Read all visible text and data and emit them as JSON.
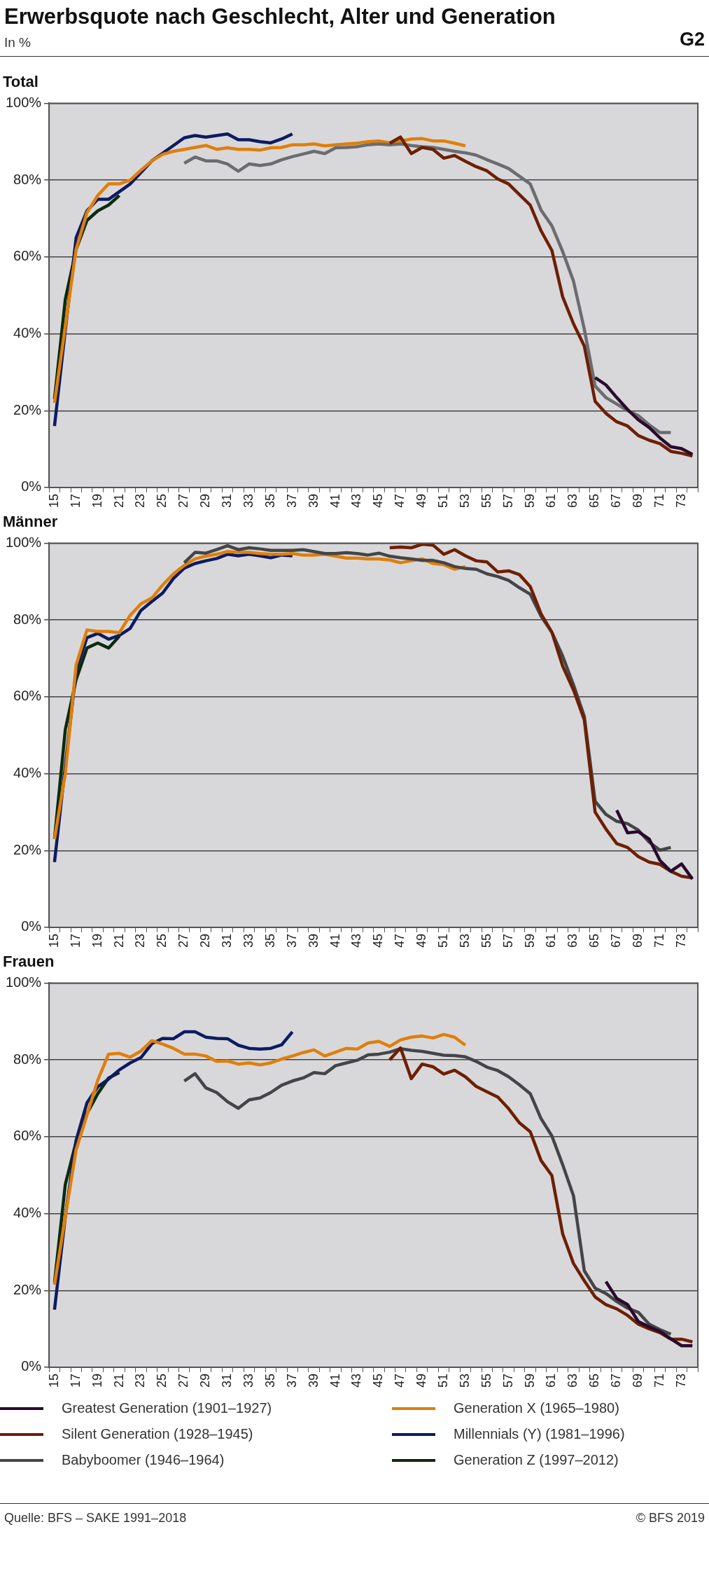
{
  "chart_data": [
    {
      "type": "other",
      "title": "Erwerbsquote nach Geschlecht, Alter und Generation",
      "subtitle": "In %",
      "annotations": [
        "G2"
      ]
    },
    {
      "type": "line",
      "title": "Total",
      "categories": [
        "15",
        null,
        "17",
        null,
        "19",
        null,
        "21",
        null,
        "23",
        null,
        "25",
        null,
        "27",
        null,
        "29",
        null,
        "31",
        null,
        "33",
        null,
        "35",
        null,
        "37",
        null,
        "39",
        null,
        "41",
        null,
        "43",
        null,
        "45",
        null,
        "47",
        null,
        "49",
        null,
        "51",
        null,
        "53",
        null,
        "55",
        null,
        "57",
        null,
        "59",
        null,
        "61",
        null,
        "63",
        null,
        "65",
        null,
        "67",
        null,
        "69",
        null,
        "71",
        null,
        "73",
        null
      ],
      "ylim": [
        0,
        100
      ],
      "yticks": [
        {
          "value": 0,
          "label": "0%"
        },
        {
          "value": 20,
          "label": "20%"
        },
        {
          "value": 40,
          "label": "40%"
        },
        {
          "value": 60,
          "label": "60%"
        },
        {
          "value": 80,
          "label": "80%"
        },
        {
          "value": 100,
          "label": "100%"
        }
      ],
      "grid": "y",
      "series": [
        {
          "color": "#2a0a2c",
          "values": [
            null,
            null,
            null,
            null,
            null,
            null,
            null,
            null,
            null,
            null,
            null,
            null,
            null,
            null,
            null,
            null,
            null,
            null,
            null,
            null,
            null,
            null,
            null,
            null,
            null,
            null,
            null,
            null,
            null,
            null,
            null,
            null,
            null,
            null,
            null,
            null,
            null,
            null,
            null,
            null,
            null,
            null,
            null,
            null,
            null,
            null,
            null,
            null,
            null,
            null,
            28.6,
            26.7,
            23.4,
            20.3,
            17.6,
            15.6,
            12.9,
            10.6,
            10.1,
            8.6
          ]
        },
        {
          "color": "#6e1f00",
          "values": [
            null,
            null,
            null,
            null,
            null,
            null,
            null,
            null,
            null,
            null,
            null,
            null,
            null,
            null,
            null,
            null,
            null,
            null,
            null,
            null,
            null,
            null,
            null,
            null,
            null,
            null,
            null,
            null,
            null,
            null,
            null,
            89.6,
            91.2,
            86.9,
            88.5,
            88,
            85.7,
            86.4,
            84.9,
            83.5,
            82.4,
            80.3,
            79,
            76.2,
            73.5,
            66.8,
            61.7,
            49.6,
            42.6,
            36.8,
            22.4,
            19.3,
            17.1,
            16,
            13.5,
            12.3,
            11.4,
            9.4,
            8.9,
            8.2
          ]
        },
        {
          "color": "#6b6c6f",
          "values": [
            null,
            null,
            null,
            null,
            null,
            null,
            null,
            null,
            null,
            null,
            null,
            null,
            84.4,
            86,
            85,
            85,
            84.2,
            82.3,
            84.2,
            83.8,
            84.2,
            85.3,
            86.1,
            86.8,
            87.5,
            86.9,
            88.4,
            88.5,
            88.7,
            89.2,
            89.4,
            89.2,
            89.4,
            89,
            88.7,
            88.5,
            88,
            87.5,
            87.1,
            86.5,
            85.3,
            84.2,
            83,
            81,
            79,
            72.2,
            68.1,
            61.4,
            53.7,
            41.2,
            26.4,
            23.4,
            21.7,
            20,
            18.7,
            16.3,
            14.3,
            14.3,
            null,
            null
          ]
        },
        {
          "color": "#e07f0a",
          "values": [
            22,
            42,
            62,
            71.5,
            76,
            79,
            79,
            80,
            82.6,
            85,
            86.7,
            87.5,
            88,
            88.5,
            89,
            88,
            88.4,
            88,
            88,
            87.8,
            88.4,
            88.5,
            89.2,
            89.2,
            89.4,
            88.9,
            89.2,
            89.4,
            89.6,
            90,
            90.2,
            89.7,
            90.2,
            90.7,
            90.8,
            90.2,
            90.2,
            89.6,
            88.9,
            null,
            null,
            null,
            null,
            null,
            null,
            null,
            null,
            null,
            null,
            null,
            null,
            null,
            null,
            null,
            null,
            null,
            null,
            null,
            null,
            null
          ]
        },
        {
          "color": "#0d1b63",
          "values": [
            16,
            41,
            65,
            72,
            75,
            75,
            77,
            79,
            82,
            85,
            87,
            89,
            91,
            91.6,
            91.2,
            91.6,
            92,
            90.5,
            90.5,
            90,
            89.7,
            90.7,
            92,
            null,
            null,
            null,
            null,
            null,
            null,
            null,
            null,
            null,
            null,
            null,
            null,
            null,
            null,
            null,
            null,
            null,
            null,
            null,
            null,
            null,
            null,
            null,
            null,
            null,
            null,
            null,
            null,
            null,
            null,
            null,
            null,
            null,
            null,
            null,
            null,
            null
          ]
        },
        {
          "color": "#0b2b10",
          "values": [
            23,
            49,
            62,
            69.5,
            72,
            73.5,
            76,
            null,
            null,
            null,
            null,
            null,
            null,
            null,
            null,
            null,
            null,
            null,
            null,
            null,
            null,
            null,
            null,
            null,
            null,
            null,
            null,
            null,
            null,
            null,
            null,
            null,
            null,
            null,
            null,
            null,
            null,
            null,
            null,
            null,
            null,
            null,
            null,
            null,
            null,
            null,
            null,
            null,
            null,
            null,
            null,
            null,
            null,
            null,
            null,
            null,
            null,
            null,
            null,
            null
          ]
        }
      ]
    },
    {
      "type": "line",
      "title": "Männer",
      "categories": [
        "15",
        null,
        "17",
        null,
        "19",
        null,
        "21",
        null,
        "23",
        null,
        "25",
        null,
        "27",
        null,
        "29",
        null,
        "31",
        null,
        "33",
        null,
        "35",
        null,
        "37",
        null,
        "39",
        null,
        "41",
        null,
        "43",
        null,
        "45",
        null,
        "47",
        null,
        "49",
        null,
        "51",
        null,
        "53",
        null,
        "55",
        null,
        "57",
        null,
        "59",
        null,
        "61",
        null,
        "63",
        null,
        "65",
        null,
        "67",
        null,
        "69",
        null,
        "71",
        null,
        "73",
        null
      ],
      "ylim": [
        0,
        100
      ],
      "yticks": [
        {
          "value": 0,
          "label": "0%"
        },
        {
          "value": 20,
          "label": "20%"
        },
        {
          "value": 40,
          "label": "40%"
        },
        {
          "value": 60,
          "label": "60%"
        },
        {
          "value": 80,
          "label": "80%"
        },
        {
          "value": 100,
          "label": "100%"
        }
      ],
      "grid": "y",
      "series": [
        {
          "color": "#2a0a2c",
          "values": [
            null,
            null,
            null,
            null,
            null,
            null,
            null,
            null,
            null,
            null,
            null,
            null,
            null,
            null,
            null,
            null,
            null,
            null,
            null,
            null,
            null,
            null,
            null,
            null,
            null,
            null,
            null,
            null,
            null,
            null,
            null,
            null,
            null,
            null,
            null,
            null,
            null,
            null,
            null,
            null,
            null,
            null,
            null,
            null,
            null,
            null,
            null,
            null,
            null,
            null,
            null,
            null,
            30.5,
            24.6,
            24.9,
            23,
            17.4,
            14.6,
            16.5,
            12.6
          ]
        },
        {
          "color": "#6e1f00",
          "values": [
            null,
            null,
            null,
            null,
            null,
            null,
            null,
            null,
            null,
            null,
            null,
            null,
            null,
            null,
            null,
            null,
            null,
            null,
            null,
            null,
            null,
            null,
            null,
            null,
            null,
            null,
            null,
            null,
            null,
            null,
            null,
            98.8,
            99,
            98.8,
            99.7,
            99.5,
            97.1,
            98.3,
            96.7,
            95.4,
            95.1,
            92.5,
            92.8,
            91.8,
            88.7,
            81.6,
            76.8,
            68,
            61.8,
            54,
            30,
            25.6,
            21.8,
            20.8,
            18.4,
            17,
            16.4,
            14.6,
            13.3,
            12.9
          ]
        },
        {
          "color": "#444548",
          "values": [
            null,
            null,
            null,
            null,
            null,
            null,
            null,
            null,
            null,
            null,
            null,
            null,
            94.9,
            97.6,
            97.4,
            98.3,
            99.3,
            98.3,
            98.8,
            98.5,
            98.1,
            98.1,
            98.1,
            98.3,
            97.8,
            97.3,
            97.3,
            97.5,
            97.3,
            96.9,
            97.4,
            96.6,
            96.2,
            95.9,
            95.5,
            95.5,
            94.9,
            93.9,
            93.4,
            93.2,
            92,
            91.3,
            90.3,
            88.4,
            86.7,
            81,
            76.8,
            70.6,
            63.1,
            54.9,
            32.8,
            29.4,
            27.6,
            27,
            25.3,
            22.2,
            20.1,
            20.8,
            null,
            null
          ]
        },
        {
          "color": "#e07f0a",
          "values": [
            23,
            40,
            68.3,
            77.4,
            77,
            77,
            76.7,
            81.2,
            84.2,
            85.7,
            89.1,
            92,
            94.2,
            95.9,
            96.6,
            97.1,
            97.8,
            97.6,
            97.6,
            97.3,
            97.1,
            97.1,
            97.3,
            96.9,
            96.9,
            97.1,
            96.6,
            96.1,
            96.1,
            95.9,
            95.9,
            95.6,
            94.9,
            95.4,
            95.9,
            94.7,
            94.4,
            93.2,
            93.9,
            null,
            null,
            null,
            null,
            null,
            null,
            null,
            null,
            null,
            null,
            null,
            null,
            null,
            null,
            null,
            null,
            null,
            null,
            null,
            null,
            null
          ]
        },
        {
          "color": "#0d1b63",
          "values": [
            17,
            42,
            66.8,
            75.4,
            76.5,
            75,
            76,
            77.8,
            82.5,
            84.8,
            87,
            90.8,
            93.5,
            94.7,
            95.4,
            96,
            97.1,
            96.7,
            97.1,
            96.7,
            96.2,
            96.9,
            96.7,
            null,
            null,
            null,
            null,
            null,
            null,
            null,
            null,
            null,
            null,
            null,
            null,
            null,
            null,
            null,
            null,
            null,
            null,
            null,
            null,
            null,
            null,
            null,
            null,
            null,
            null,
            null,
            null,
            null,
            null,
            null,
            null,
            null,
            null,
            null,
            null,
            null
          ]
        },
        {
          "color": "#0b2b10",
          "values": [
            23,
            51.5,
            64.5,
            72.7,
            74,
            72.7,
            75.8,
            null,
            null,
            null,
            null,
            null,
            null,
            null,
            null,
            null,
            null,
            null,
            null,
            null,
            null,
            null,
            null,
            null,
            null,
            null,
            null,
            null,
            null,
            null,
            null,
            null,
            null,
            null,
            null,
            null,
            null,
            null,
            null,
            null,
            null,
            null,
            null,
            null,
            null,
            null,
            null,
            null,
            null,
            null,
            null,
            null,
            null,
            null,
            null,
            null,
            null,
            null,
            null,
            null
          ]
        }
      ]
    },
    {
      "type": "line",
      "title": "Frauen",
      "categories": [
        "15",
        null,
        "17",
        null,
        "19",
        null,
        "21",
        null,
        "23",
        null,
        "25",
        null,
        "27",
        null,
        "29",
        null,
        "31",
        null,
        "33",
        null,
        "35",
        null,
        "37",
        null,
        "39",
        null,
        "41",
        null,
        "43",
        null,
        "45",
        null,
        "47",
        null,
        "49",
        null,
        "51",
        null,
        "53",
        null,
        "55",
        null,
        "57",
        null,
        "59",
        null,
        "61",
        null,
        "63",
        null,
        "65",
        null,
        "67",
        null,
        "69",
        null,
        "71",
        null,
        "73",
        null
      ],
      "ylim": [
        0,
        100
      ],
      "yticks": [
        {
          "value": 0,
          "label": "0%"
        },
        {
          "value": 20,
          "label": "20%"
        },
        {
          "value": 40,
          "label": "40%"
        },
        {
          "value": 60,
          "label": "60%"
        },
        {
          "value": 80,
          "label": "80%"
        },
        {
          "value": 100,
          "label": "100%"
        }
      ],
      "grid": "y",
      "legend": "bottom",
      "annotations": [
        "Quelle: BFS – SAKE 1991–2018",
        "© BFS 2019"
      ],
      "series": [
        {
          "name": "Greatest Generation (1901–1927)",
          "color": "#2a0a2c",
          "values": [
            null,
            null,
            null,
            null,
            null,
            null,
            null,
            null,
            null,
            null,
            null,
            null,
            null,
            null,
            null,
            null,
            null,
            null,
            null,
            null,
            null,
            null,
            null,
            null,
            null,
            null,
            null,
            null,
            null,
            null,
            null,
            null,
            null,
            null,
            null,
            null,
            null,
            null,
            null,
            null,
            null,
            null,
            null,
            null,
            null,
            null,
            null,
            null,
            null,
            null,
            null,
            22.3,
            17.9,
            16.3,
            11.9,
            10.5,
            9.3,
            7.4,
            5.6,
            5.6
          ]
        },
        {
          "name": "Silent Generation (1928–1945)",
          "color": "#6e1f00",
          "values": [
            null,
            null,
            null,
            null,
            null,
            null,
            null,
            null,
            null,
            null,
            null,
            null,
            null,
            null,
            null,
            null,
            null,
            null,
            null,
            null,
            null,
            null,
            null,
            null,
            null,
            null,
            null,
            null,
            null,
            null,
            null,
            80,
            83.1,
            75.1,
            78.9,
            78.2,
            76.3,
            77.3,
            75.6,
            73.1,
            71.7,
            70.3,
            67.3,
            63.6,
            61.3,
            53.8,
            49.9,
            34.7,
            27,
            22.5,
            18.3,
            16.3,
            15.2,
            13.5,
            11.2,
            10,
            9,
            7.3,
            7.3,
            6.6
          ]
        },
        {
          "name": "Babyboomer (1946–1964)",
          "color": "#444548",
          "values": [
            null,
            null,
            null,
            null,
            null,
            null,
            null,
            null,
            null,
            null,
            null,
            null,
            74.5,
            76.4,
            72.7,
            71.5,
            69.1,
            67.4,
            69.6,
            70.1,
            71.5,
            73.4,
            74.5,
            75.3,
            76.7,
            76.4,
            78.5,
            79.2,
            79.9,
            81.3,
            81.5,
            82,
            82.9,
            82.5,
            82.2,
            81.7,
            81.2,
            81.1,
            80.8,
            79.6,
            78.1,
            77.2,
            75.6,
            73.5,
            71.2,
            64.7,
            60.2,
            52.7,
            44.6,
            25.1,
            20.6,
            19.2,
            17.1,
            15.4,
            14.3,
            11.2,
            9.8,
            8.6,
            null,
            null
          ]
        },
        {
          "name": "Generation X (1965–1980)",
          "color": "#e07f0a",
          "values": [
            21.5,
            39.2,
            56.6,
            65.6,
            74.7,
            81.5,
            81.7,
            80.7,
            82.3,
            85,
            84.1,
            83,
            81.5,
            81.5,
            81,
            79.6,
            79.7,
            78.9,
            79.2,
            78.7,
            79.2,
            80.2,
            81,
            81.9,
            82.6,
            81,
            82,
            83,
            82.8,
            84.4,
            84.8,
            83.5,
            85.2,
            85.9,
            86.2,
            85.7,
            86.6,
            85.9,
            83.8,
            null,
            null,
            null,
            null,
            null,
            null,
            null,
            null,
            null,
            null,
            null,
            null,
            null,
            null,
            null,
            null,
            null,
            null,
            null,
            null,
            null
          ]
        },
        {
          "name": "Millennials (Y) (1981–1996)",
          "color": "#0d1b63",
          "values": [
            15,
            39.2,
            59.1,
            68.8,
            73,
            75,
            77.4,
            79.2,
            80.6,
            84.2,
            85.6,
            85.5,
            87.3,
            87.3,
            85.9,
            85.6,
            85.5,
            83.8,
            83,
            82.8,
            83,
            83.9,
            87.3,
            null,
            null,
            null,
            null,
            null,
            null,
            null,
            null,
            null,
            null,
            null,
            null,
            null,
            null,
            null,
            null,
            null,
            null,
            null,
            null,
            null,
            null,
            null,
            null,
            null,
            null,
            null,
            null,
            null,
            null,
            null,
            null,
            null,
            null,
            null,
            null,
            null
          ]
        },
        {
          "name": "Generation Z (1997–2012)",
          "color": "#0b2b10",
          "values": [
            22,
            47.6,
            58.7,
            66,
            71.2,
            75.3,
            76.7,
            null,
            null,
            null,
            null,
            null,
            null,
            null,
            null,
            null,
            null,
            null,
            null,
            null,
            null,
            null,
            null,
            null,
            null,
            null,
            null,
            null,
            null,
            null,
            null,
            null,
            null,
            null,
            null,
            null,
            null,
            null,
            null,
            null,
            null,
            null,
            null,
            null,
            null,
            null,
            null,
            null,
            null,
            null,
            null,
            null,
            null,
            null,
            null,
            null,
            null,
            null,
            null,
            null
          ]
        }
      ]
    }
  ]
}
